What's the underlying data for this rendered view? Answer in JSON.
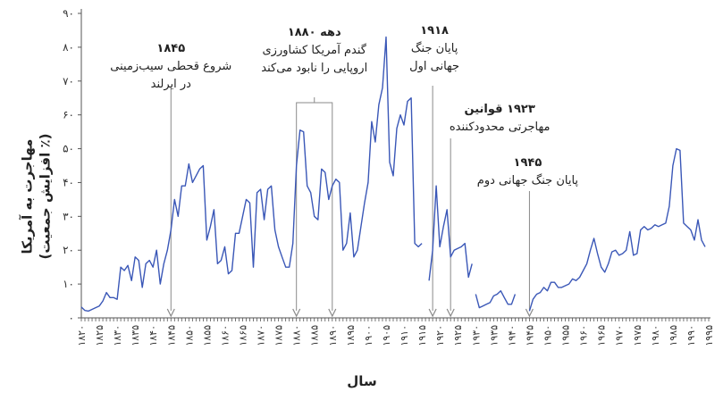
{
  "chart_data": {
    "type": "line",
    "xlabel": "سال",
    "ylabel": "مهاجرت به آمریکا",
    "ylabel_sub": "(٪ افزایش جمعیت)",
    "xlim": [
      1820,
      1995
    ],
    "ylim": [
      0,
      90
    ],
    "yticks": [
      0,
      10,
      20,
      30,
      40,
      50,
      60,
      70,
      80,
      90
    ],
    "ytick_labels": [
      "۰",
      "۱۰",
      "۲۰",
      "۳۰",
      "۴۰",
      "۵۰",
      "۶۰",
      "۷۰",
      "۸۰",
      "۹۰"
    ],
    "xticks": [
      1820,
      1825,
      1830,
      1835,
      1840,
      1845,
      1850,
      1855,
      1860,
      1865,
      1870,
      1875,
      1880,
      1885,
      1890,
      1895,
      1900,
      1905,
      1910,
      1915,
      1920,
      1925,
      1930,
      1935,
      1940,
      1945,
      1950,
      1955,
      1960,
      1965,
      1970,
      1975,
      1980,
      1985,
      1990,
      1995
    ],
    "xtick_labels": [
      "۱۸۲۰",
      "۱۸۲۵",
      "۱۸۳۰",
      "۱۸۳۵",
      "۱۸۴۰",
      "۱۸۴۵",
      "۱۸۵۰",
      "۱۸۵۵",
      "۱۸۶۰",
      "۱۸۶۵",
      "۱۸۷۰",
      "۱۸۷۵",
      "۱۸۸۰",
      "۱۸۸۵",
      "۱۸۹۰",
      "۱۸۹۵",
      "۱۹۰۰",
      "۱۹۰۵",
      "۱۹۱۰",
      "۱۹۱۵",
      "۱۹۲۰",
      "۱۹۲۵",
      "۱۹۳۰",
      "۱۹۳۵",
      "۱۹۴۰",
      "۱۹۴۵",
      "۱۹۵۰",
      "۱۹۵۵",
      "۱۹۶۰",
      "۱۹۶۵",
      "۱۹۷۰",
      "۱۹۷۵",
      "۱۹۸۰",
      "۱۹۸۵",
      "۱۹۹۰",
      "۱۹۹۵"
    ],
    "line_color": "#3a57b7",
    "axis_color": "#555555",
    "annotation_color": "#8a8a8a",
    "grid": false,
    "series": [
      {
        "segments": [
          [
            [
              1820,
              3.2
            ],
            [
              1821,
              2.2
            ],
            [
              1822,
              2
            ],
            [
              1823,
              2.5
            ],
            [
              1824,
              3
            ],
            [
              1825,
              3.5
            ],
            [
              1826,
              5
            ],
            [
              1827,
              7.5
            ],
            [
              1828,
              6
            ],
            [
              1829,
              6
            ],
            [
              1830,
              5.5
            ],
            [
              1831,
              15
            ],
            [
              1832,
              14
            ],
            [
              1833,
              15.5
            ],
            [
              1834,
              11
            ],
            [
              1835,
              18
            ],
            [
              1836,
              17
            ],
            [
              1837,
              9
            ],
            [
              1838,
              16
            ],
            [
              1839,
              17
            ],
            [
              1840,
              15
            ],
            [
              1841,
              20
            ],
            [
              1842,
              10
            ],
            [
              1843,
              16
            ],
            [
              1844,
              20
            ],
            [
              1845,
              26
            ],
            [
              1846,
              35
            ],
            [
              1847,
              30
            ],
            [
              1848,
              39
            ],
            [
              1849,
              39
            ],
            [
              1850,
              45.5
            ],
            [
              1851,
              40
            ],
            [
              1852,
              42
            ],
            [
              1853,
              44
            ],
            [
              1854,
              45
            ],
            [
              1855,
              23
            ],
            [
              1856,
              27
            ],
            [
              1857,
              32
            ],
            [
              1858,
              16
            ],
            [
              1859,
              17
            ],
            [
              1860,
              21
            ],
            [
              1861,
              13
            ],
            [
              1862,
              14
            ],
            [
              1863,
              25
            ],
            [
              1864,
              25
            ],
            [
              1865,
              30
            ],
            [
              1866,
              35
            ],
            [
              1867,
              34
            ],
            [
              1868,
              15
            ],
            [
              1869,
              37
            ],
            [
              1870,
              38
            ],
            [
              1871,
              29
            ],
            [
              1872,
              38
            ],
            [
              1873,
              39
            ],
            [
              1874,
              26
            ],
            [
              1875,
              21
            ],
            [
              1876,
              18
            ],
            [
              1877,
              15
            ],
            [
              1878,
              15
            ],
            [
              1879,
              22
            ],
            [
              1880,
              45
            ],
            [
              1881,
              55.5
            ],
            [
              1882,
              55
            ],
            [
              1883,
              39
            ],
            [
              1884,
              37
            ],
            [
              1885,
              30
            ],
            [
              1886,
              29
            ],
            [
              1887,
              44
            ],
            [
              1888,
              43
            ],
            [
              1889,
              35
            ],
            [
              1890,
              39
            ],
            [
              1891,
              41
            ],
            [
              1892,
              40
            ],
            [
              1893,
              20
            ],
            [
              1894,
              22
            ],
            [
              1895,
              31
            ],
            [
              1896,
              18
            ],
            [
              1897,
              20
            ],
            [
              1898,
              27
            ],
            [
              1899,
              34
            ],
            [
              1900,
              40
            ],
            [
              1901,
              58
            ],
            [
              1902,
              52
            ],
            [
              1903,
              63
            ],
            [
              1904,
              68
            ],
            [
              1905,
              83
            ],
            [
              1906,
              46
            ],
            [
              1907,
              42
            ],
            [
              1908,
              56
            ],
            [
              1909,
              60
            ],
            [
              1910,
              57
            ],
            [
              1911,
              64
            ],
            [
              1912,
              65
            ],
            [
              1913,
              22
            ],
            [
              1914,
              21
            ],
            [
              1915,
              22
            ]
          ],
          [
            [
              1917,
              11
            ],
            [
              1918,
              20
            ],
            [
              1919,
              39
            ],
            [
              1920,
              21
            ],
            [
              1921,
              27
            ],
            [
              1922,
              32
            ],
            [
              1923,
              18
            ],
            [
              1924,
              20
            ],
            [
              1925,
              20.5
            ],
            [
              1926,
              21
            ],
            [
              1927,
              22
            ],
            [
              1928,
              12
            ],
            [
              1929,
              16
            ]
          ],
          [
            [
              1930,
              7
            ],
            [
              1931,
              3
            ],
            [
              1932,
              3.5
            ],
            [
              1933,
              4
            ],
            [
              1934,
              4.5
            ],
            [
              1935,
              6.5
            ],
            [
              1936,
              7
            ],
            [
              1937,
              8
            ],
            [
              1938,
              6
            ],
            [
              1939,
              4
            ],
            [
              1940,
              4
            ],
            [
              1941,
              7
            ]
          ],
          [
            [
              1945,
              2
            ],
            [
              1946,
              5.5
            ],
            [
              1947,
              7
            ],
            [
              1948,
              7.5
            ],
            [
              1949,
              9
            ],
            [
              1950,
              8
            ],
            [
              1951,
              10.5
            ],
            [
              1952,
              10.5
            ],
            [
              1953,
              9
            ],
            [
              1954,
              9
            ],
            [
              1955,
              9.5
            ],
            [
              1956,
              10
            ],
            [
              1957,
              11.5
            ],
            [
              1958,
              11
            ],
            [
              1959,
              12
            ],
            [
              1960,
              14
            ],
            [
              1961,
              16
            ],
            [
              1962,
              20
            ],
            [
              1963,
              23.5
            ],
            [
              1964,
              19
            ],
            [
              1965,
              15
            ],
            [
              1966,
              13.5
            ],
            [
              1967,
              16
            ],
            [
              1968,
              19.5
            ],
            [
              1969,
              20
            ],
            [
              1970,
              18.5
            ],
            [
              1971,
              19
            ],
            [
              1972,
              20
            ],
            [
              1973,
              25.5
            ],
            [
              1974,
              18.5
            ],
            [
              1975,
              19
            ],
            [
              1976,
              26
            ],
            [
              1977,
              27
            ],
            [
              1978,
              26
            ],
            [
              1979,
              26.5
            ],
            [
              1980,
              27.5
            ],
            [
              1981,
              27
            ],
            [
              1982,
              27.5
            ],
            [
              1983,
              28
            ],
            [
              1984,
              33
            ],
            [
              1985,
              45
            ],
            [
              1986,
              50
            ],
            [
              1987,
              49.5
            ],
            [
              1988,
              28
            ],
            [
              1989,
              27
            ],
            [
              1990,
              26
            ],
            [
              1991,
              23
            ],
            [
              1992,
              29
            ],
            [
              1993,
              23
            ],
            [
              1994,
              21
            ]
          ]
        ]
      }
    ],
    "annotations": [
      {
        "id": "famine",
        "lines": [
          "۱۸۴۵",
          "شروع قحطی سیب‌زمینی",
          "در ایرلند"
        ]
      },
      {
        "id": "wheat",
        "lines": [
          "دهه ۱۸۸۰",
          "گندم آمریکا کشاورزی",
          "اروپایی را نابود می‌کند"
        ]
      },
      {
        "id": "ww1",
        "lines": [
          "۱۹۱۸",
          "پایان جنگ",
          "جهانی اول"
        ]
      },
      {
        "id": "laws",
        "lines": [
          "۱۹۲۳ قوانین",
          "مهاجرتی محدودکننده"
        ]
      },
      {
        "id": "ww2",
        "lines": [
          "۱۹۴۵",
          "پایان جنگ جهانی دوم"
        ]
      }
    ]
  }
}
